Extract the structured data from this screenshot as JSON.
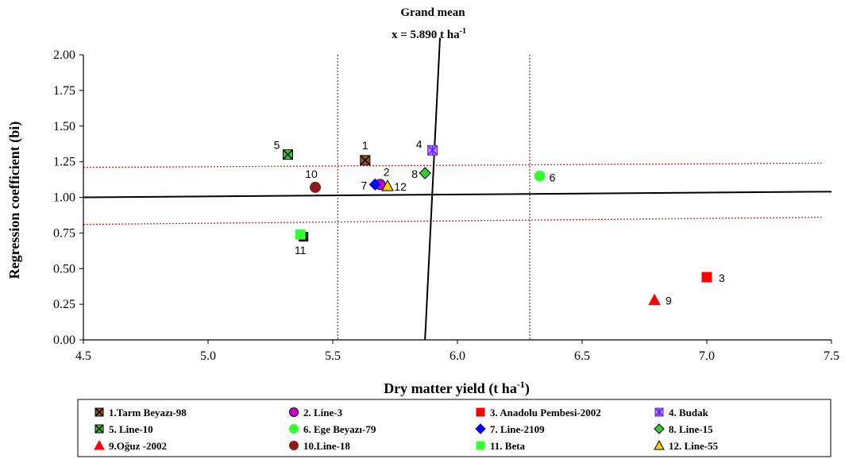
{
  "chart_data": {
    "type": "scatter",
    "title_lines": [
      "Grand mean",
      "x = 5.890 t ha"
    ],
    "title_sup": "-1",
    "xlabel": "Dry matter yield (t ha",
    "xlabel_sup": "-1",
    "xlabel_end": ")",
    "ylabel": "Regression coefficient (bi)",
    "xlim": [
      4.5,
      7.5
    ],
    "ylim": [
      0.0,
      2.0
    ],
    "xticks": [
      "4.5",
      "5.0",
      "5.5",
      "6.0",
      "6.5",
      "7.0",
      "7.5"
    ],
    "yticks": [
      "0.00",
      "0.25",
      "0.50",
      "0.75",
      "1.00",
      "1.25",
      "1.50",
      "1.75",
      "2.00"
    ],
    "grand_mean_line": {
      "x_bottom": 5.87,
      "y_bottom": 0.0,
      "x_top": 5.93,
      "y_top": 2.12
    },
    "regression_line": {
      "x1": 4.5,
      "y1": 1.0,
      "x2": 7.5,
      "y2": 1.04
    },
    "ci_vertical_dotted": [
      5.52,
      6.29
    ],
    "ci_horizontal_dotted": [
      {
        "x1": 4.5,
        "y1": 1.21,
        "x2": 7.46,
        "y2": 1.24
      },
      {
        "x1": 4.5,
        "y1": 0.81,
        "x2": 7.46,
        "y2": 0.86
      }
    ],
    "series": [
      {
        "label": "1",
        "name": "1.Tarm Beyazı-98",
        "x": 5.63,
        "y": 1.26,
        "marker": "square-x",
        "color": "#a0522d",
        "stroke": "#000000"
      },
      {
        "label": "2",
        "name": "2. Line-3",
        "x": 5.69,
        "y": 1.09,
        "marker": "circle",
        "color": "#cc00cc",
        "stroke": "#000000"
      },
      {
        "label": "3",
        "name": "3. Anadolu Pembesi-2002",
        "x": 7.0,
        "y": 0.44,
        "marker": "square",
        "color": "#ff0000",
        "stroke": "#ff0000"
      },
      {
        "label": "4",
        "name": "4. Budak",
        "x": 5.9,
        "y": 1.33,
        "marker": "square-star",
        "color": "#ff66ff",
        "stroke": "#3333ff"
      },
      {
        "label": "5",
        "name": "5. Line-10",
        "x": 5.32,
        "y": 1.3,
        "marker": "square-x",
        "color": "#33cc33",
        "stroke": "#000000"
      },
      {
        "label": "6",
        "name": "6. Ege Beyazı-79",
        "x": 6.33,
        "y": 1.15,
        "marker": "circle",
        "color": "#33ff33",
        "stroke": "#33ff33"
      },
      {
        "label": "7",
        "name": "7. Line-2109",
        "x": 5.67,
        "y": 1.09,
        "marker": "diamond",
        "color": "#0000ff",
        "stroke": "#0000ff"
      },
      {
        "label": "8",
        "name": "8. Line-15",
        "x": 5.87,
        "y": 1.17,
        "marker": "diamond",
        "color": "#33cc33",
        "stroke": "#000000"
      },
      {
        "label": "9",
        "name": "9.Oğuz -2002",
        "x": 6.79,
        "y": 0.28,
        "marker": "triangle",
        "color": "#ff0000",
        "stroke": "#ff0000"
      },
      {
        "label": "10",
        "name": "10.Line-18",
        "x": 5.43,
        "y": 1.07,
        "marker": "circle",
        "color": "#8b1a1a",
        "stroke": "#8b1a1a"
      },
      {
        "label": "11",
        "name": "11. Beta",
        "x": 5.37,
        "y": 0.74,
        "marker": "square",
        "color": "#33ff33",
        "stroke": "#33ff33"
      },
      {
        "label": "12",
        "name": "12. Line-55",
        "x": 5.72,
        "y": 1.08,
        "marker": "triangle",
        "color": "#ffcc00",
        "stroke": "#000000"
      }
    ],
    "grid": false,
    "legend_position": "bottom"
  }
}
